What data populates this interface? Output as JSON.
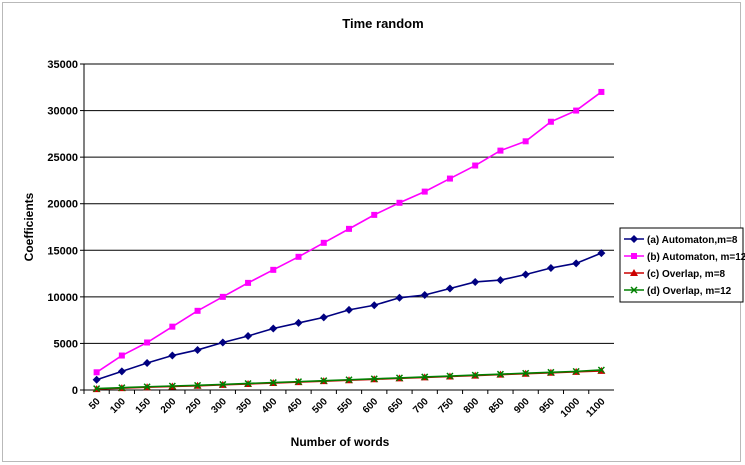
{
  "chart_data": {
    "type": "line",
    "title": "Time random",
    "xlabel": "Number of words",
    "ylabel": "Coefficients",
    "ylim": [
      0,
      35000
    ],
    "yticks": [
      0,
      5000,
      10000,
      15000,
      20000,
      25000,
      30000,
      35000
    ],
    "grid": "horizontal",
    "legend_position": "right",
    "categories": [
      "50",
      "100",
      "150",
      "200",
      "250",
      "300",
      "350",
      "400",
      "450",
      "500",
      "550",
      "600",
      "650",
      "700",
      "750",
      "800",
      "850",
      "900",
      "950",
      "1000",
      "1100"
    ],
    "series": [
      {
        "name": "(a) Automaton,m=8",
        "color": "#000080",
        "marker": "diamond",
        "values": [
          1100,
          2000,
          2900,
          3700,
          4300,
          5100,
          5800,
          6600,
          7200,
          7800,
          8600,
          9100,
          9900,
          10200,
          10900,
          11600,
          11800,
          12400,
          13100,
          13600,
          14700
        ]
      },
      {
        "name": "(b) Automaton, m=12",
        "color": "#ff00ff",
        "marker": "square",
        "values": [
          1900,
          3700,
          5100,
          6800,
          8500,
          10000,
          11500,
          12900,
          14300,
          15800,
          17300,
          18800,
          20100,
          21300,
          22700,
          24100,
          25700,
          26700,
          28800,
          30000,
          32000
        ]
      },
      {
        "name": "(c) Overlap, m=8",
        "color": "#cc0000",
        "marker": "triangle",
        "values": [
          100,
          200,
          300,
          380,
          450,
          550,
          650,
          750,
          850,
          950,
          1050,
          1150,
          1250,
          1350,
          1450,
          1550,
          1650,
          1750,
          1850,
          1950,
          2050
        ]
      },
      {
        "name": "(d) Overlap, m=12",
        "color": "#008000",
        "marker": "x",
        "values": [
          150,
          250,
          350,
          430,
          500,
          600,
          700,
          800,
          900,
          1000,
          1100,
          1200,
          1300,
          1400,
          1500,
          1600,
          1700,
          1800,
          1900,
          2000,
          2150
        ]
      }
    ]
  }
}
